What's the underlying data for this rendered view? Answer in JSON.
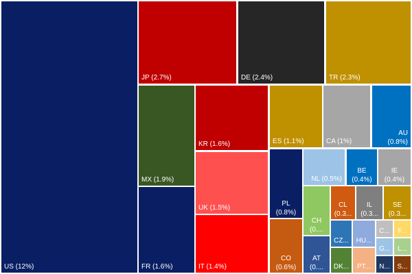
{
  "chart_data": {
    "type": "treemap",
    "title": "",
    "value_unit": "%",
    "items": [
      {
        "label": "US (12%)",
        "code": "US",
        "value": 12,
        "color": "#0a1f63"
      },
      {
        "label": "JP (2.7%)",
        "code": "JP",
        "value": 2.7,
        "color": "#c00000"
      },
      {
        "label": "DE (2.4%)",
        "code": "DE",
        "value": 2.4,
        "color": "#262626"
      },
      {
        "label": "TR (2.3%)",
        "code": "TR",
        "value": 2.3,
        "color": "#bf9000"
      },
      {
        "label": "MX (1.9%)",
        "code": "MX",
        "value": 1.9,
        "color": "#385723"
      },
      {
        "label": "FR (1.6%)",
        "code": "FR",
        "value": 1.6,
        "color": "#0a1f63"
      },
      {
        "label": "KR (1.6%)",
        "code": "KR",
        "value": 1.6,
        "color": "#c00000"
      },
      {
        "label": "UK (1.5%)",
        "code": "UK",
        "value": 1.5,
        "color": "#ff5050"
      },
      {
        "label": "IT (1.4%)",
        "code": "IT",
        "value": 1.4,
        "color": "#ff0000"
      },
      {
        "label": "ES (1.1%)",
        "code": "ES",
        "value": 1.1,
        "color": "#bf9000"
      },
      {
        "label": "CA (1%)",
        "code": "CA",
        "value": 1.0,
        "color": "#a6a6a6"
      },
      {
        "label": "AU (0.8%)",
        "code": "AU",
        "value": 0.8,
        "color": "#0070c0"
      },
      {
        "label": "PL (0.8%)",
        "code": "PL",
        "value": 0.8,
        "color": "#0a1f63"
      },
      {
        "label": "CO (0.6%)",
        "code": "CO",
        "value": 0.6,
        "color": "#c55a11"
      },
      {
        "label": "NL (0.5%)",
        "code": "NL",
        "value": 0.5,
        "color": "#9dc3e6"
      },
      {
        "label": "BE (0.4%)",
        "code": "BE",
        "value": 0.4,
        "color": "#0070c0"
      },
      {
        "label": "IE (0.4%)",
        "code": "IE",
        "value": 0.4,
        "color": "#a6a6a6"
      },
      {
        "label": "CH (0....",
        "code": "CH",
        "value": 0.3,
        "color": "#8fc860"
      },
      {
        "label": "CL (0.3...",
        "code": "CL",
        "value": 0.3,
        "color": "#d05a10"
      },
      {
        "label": "IL (0.3...",
        "code": "IL",
        "value": 0.3,
        "color": "#7f7f7f"
      },
      {
        "label": "SE (0.3...",
        "code": "SE",
        "value": 0.3,
        "color": "#bf9000"
      },
      {
        "label": "CZ...",
        "code": "CZ",
        "value": 0.2,
        "color": "#2e75b6"
      },
      {
        "label": "HU...",
        "code": "HU",
        "value": 0.2,
        "color": "#8faadc"
      },
      {
        "label": "C...",
        "code": "C",
        "value": 0.1,
        "color": "#bfbfbf"
      },
      {
        "label": "F...",
        "code": "F",
        "value": 0.1,
        "color": "#ffd966"
      },
      {
        "label": "AT (0....",
        "code": "AT",
        "value": 0.3,
        "color": "#2f5597"
      },
      {
        "label": "G...",
        "code": "G",
        "value": 0.1,
        "color": "#9dc3e6"
      },
      {
        "label": "L...",
        "code": "L",
        "value": 0.1,
        "color": "#a9d18e"
      },
      {
        "label": "DK...",
        "code": "DK",
        "value": 0.2,
        "color": "#548235"
      },
      {
        "label": "PT...",
        "code": "PT",
        "value": 0.2,
        "color": "#f4b183"
      },
      {
        "label": "N...",
        "code": "N",
        "value": 0.1,
        "color": "#203864"
      },
      {
        "label": "S...",
        "code": "S",
        "value": 0.1,
        "color": "#843c0c"
      }
    ]
  }
}
